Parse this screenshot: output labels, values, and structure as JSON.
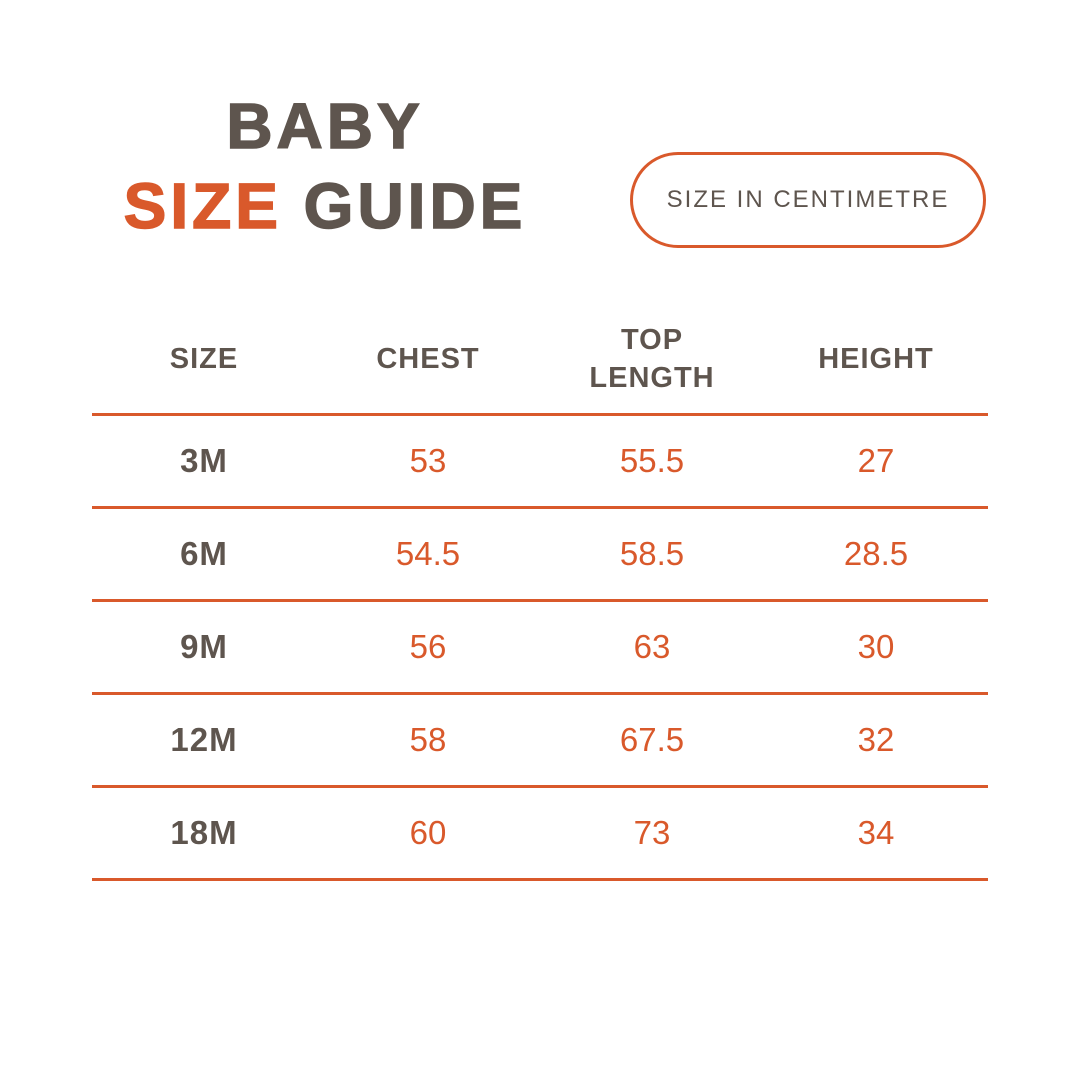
{
  "colors": {
    "accent": "#D9592B",
    "text_dark": "#5E554E",
    "background": "#FFFFFF"
  },
  "title": {
    "line1": "BABY",
    "line2_accent": "SIZE",
    "line2_rest": "GUIDE"
  },
  "badge": {
    "label": "SIZE IN CENTIMETRE"
  },
  "table": {
    "headers": [
      "SIZE",
      "CHEST",
      "TOP\nLENGTH",
      "HEIGHT"
    ],
    "rows": [
      {
        "size": "3M",
        "chest": "53",
        "top_length": "55.5",
        "height": "27"
      },
      {
        "size": "6M",
        "chest": "54.5",
        "top_length": "58.5",
        "height": "28.5"
      },
      {
        "size": "9M",
        "chest": "56",
        "top_length": "63",
        "height": "30"
      },
      {
        "size": "12M",
        "chest": "58",
        "top_length": "67.5",
        "height": "32"
      },
      {
        "size": "18M",
        "chest": "60",
        "top_length": "73",
        "height": "34"
      }
    ]
  },
  "chart_data": {
    "type": "table",
    "title": "BABY SIZE GUIDE",
    "unit": "centimetre",
    "columns": [
      "SIZE",
      "CHEST",
      "TOP LENGTH",
      "HEIGHT"
    ],
    "rows": [
      [
        "3M",
        53,
        55.5,
        27
      ],
      [
        "6M",
        54.5,
        58.5,
        28.5
      ],
      [
        "9M",
        56,
        63,
        30
      ],
      [
        "12M",
        58,
        67.5,
        32
      ],
      [
        "18M",
        60,
        73,
        34
      ]
    ]
  }
}
